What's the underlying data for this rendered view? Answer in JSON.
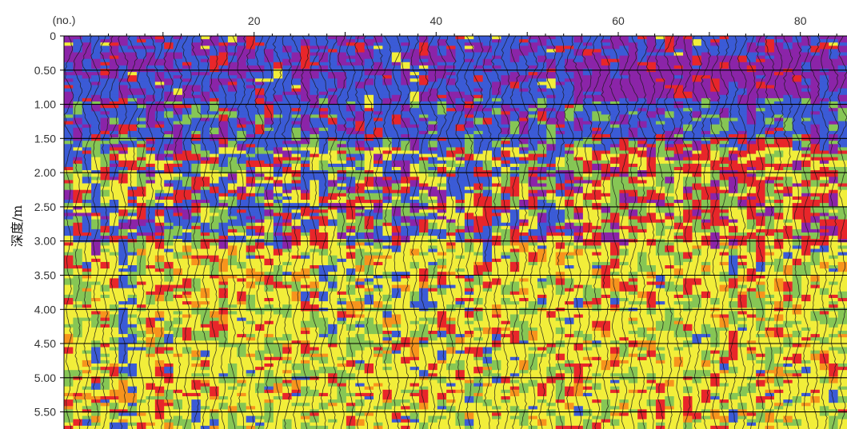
{
  "chart_data": {
    "type": "heatmap",
    "title": "",
    "xlabel": "",
    "x_unit_label": "(no.)",
    "ylabel": "深度/m",
    "xlim": [
      0,
      86
    ],
    "ylim": [
      0,
      5.75
    ],
    "y_inverted": true,
    "x_ticks": [
      {
        "value": 20,
        "label": "20"
      },
      {
        "value": 40,
        "label": "40"
      },
      {
        "value": 60,
        "label": "60"
      },
      {
        "value": 80,
        "label": "80"
      }
    ],
    "y_ticks": [
      {
        "value": 0,
        "label": "0"
      },
      {
        "value": 0.5,
        "label": "0.50"
      },
      {
        "value": 1.0,
        "label": "1.00"
      },
      {
        "value": 1.5,
        "label": "1.50"
      },
      {
        "value": 2.0,
        "label": "2.00"
      },
      {
        "value": 2.5,
        "label": "2.50"
      },
      {
        "value": 3.0,
        "label": "3.00"
      },
      {
        "value": 3.5,
        "label": "3.50"
      },
      {
        "value": 4.0,
        "label": "4.00"
      },
      {
        "value": 4.5,
        "label": "4.50"
      },
      {
        "value": 5.0,
        "label": "5.00"
      },
      {
        "value": 5.5,
        "label": "5.50"
      }
    ],
    "grid": true,
    "colors": {
      "purple": "#8b24a8",
      "blue": "#3b5bd6",
      "red": "#e8262a",
      "orange": "#f7941d",
      "yellow": "#f2ee3a",
      "green": "#86c655",
      "teal": "#2aa89a",
      "wiggle": "#1a1a1a",
      "gridline": "#000000"
    },
    "bands": [
      {
        "depth_range": [
          0.0,
          0.9
        ],
        "dominant": "purple",
        "mixed": [
          "blue",
          "red"
        ]
      },
      {
        "depth_range": [
          0.9,
          1.6
        ],
        "dominant": "blue",
        "mixed": [
          "purple",
          "red",
          "green"
        ]
      },
      {
        "depth_range": [
          1.6,
          3.0
        ],
        "dominant": "red",
        "mixed": [
          "green",
          "yellow",
          "blue"
        ]
      },
      {
        "depth_range": [
          3.0,
          5.75
        ],
        "dominant": "yellow",
        "mixed": [
          "green",
          "red",
          "orange"
        ]
      }
    ]
  }
}
